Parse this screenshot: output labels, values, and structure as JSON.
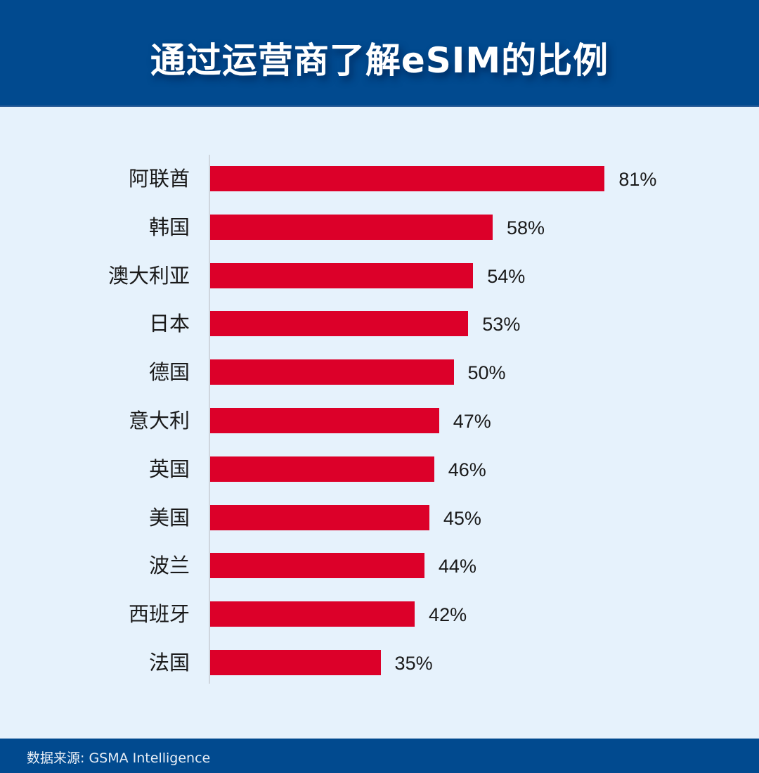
{
  "header": {
    "title": "通过运营商了解eSIM的比例"
  },
  "footer": {
    "source": "数据来源: GSMA Intelligence"
  },
  "colors": {
    "header_bg": "#014a8f",
    "plot_bg": "#e6f2fc",
    "bar": "#dc0029",
    "text": "#1a1a1a"
  },
  "chart_data": {
    "type": "bar",
    "orientation": "horizontal",
    "title": "通过运营商了解eSIM的比例",
    "xlabel": "",
    "ylabel": "",
    "categories": [
      "阿联酋",
      "韩国",
      "澳大利亚",
      "日本",
      "德国",
      "意大利",
      "英国",
      "美国",
      "波兰",
      "西班牙",
      "法国"
    ],
    "values": [
      81,
      58,
      54,
      53,
      50,
      47,
      46,
      45,
      44,
      42,
      35
    ],
    "value_labels": [
      "81%",
      "58%",
      "54%",
      "53%",
      "50%",
      "47%",
      "46%",
      "45%",
      "44%",
      "42%",
      "35%"
    ],
    "unit": "%",
    "xlim": [
      0,
      100
    ],
    "grid": false,
    "legend": null,
    "source": "GSMA Intelligence"
  }
}
